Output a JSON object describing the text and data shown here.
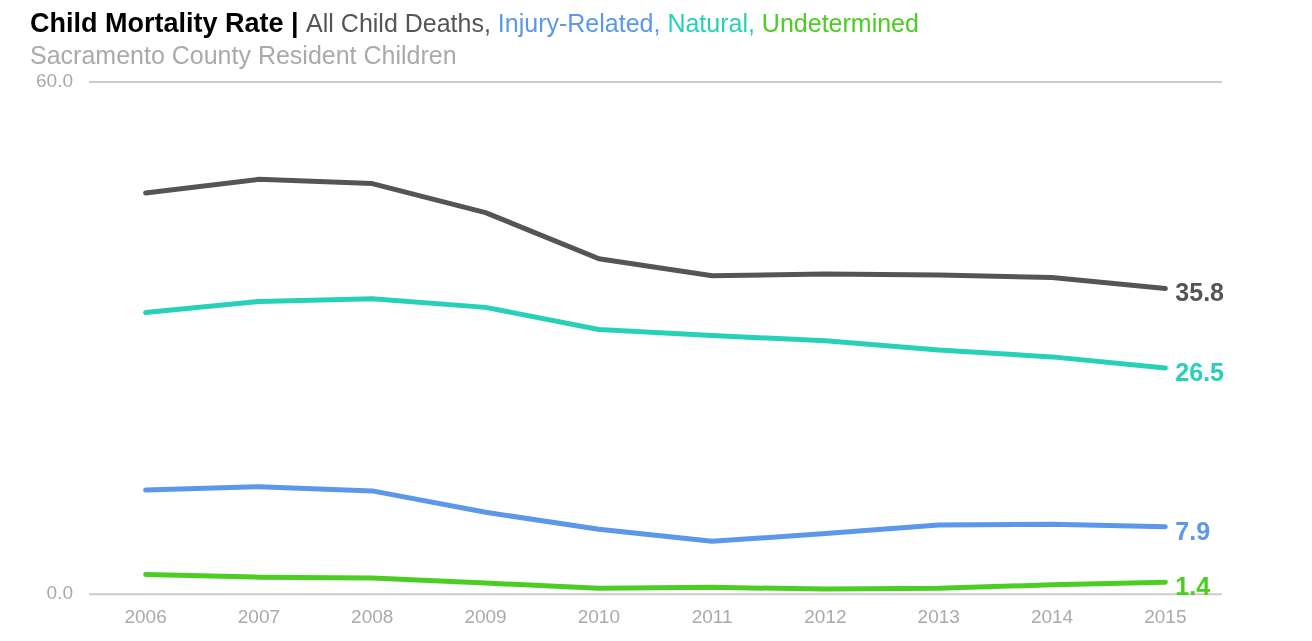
{
  "chart_data": {
    "type": "line",
    "title": "Child Mortality Rate |",
    "subtitle": "Sacramento County Resident Children",
    "categories": [
      "2006",
      "2007",
      "2008",
      "2009",
      "2010",
      "2011",
      "2012",
      "2013",
      "2014",
      "2015"
    ],
    "series": [
      {
        "name": "All Child Deaths,",
        "color": "#555555",
        "values": [
          47.0,
          48.6,
          48.1,
          44.7,
          39.3,
          37.3,
          37.5,
          37.4,
          37.1,
          35.8
        ],
        "value_labels": [
          null,
          null,
          null,
          null,
          null,
          null,
          null,
          null,
          null,
          "35.8"
        ]
      },
      {
        "name": "Injury-Related,",
        "color": "#5b97ea",
        "values": [
          12.2,
          12.6,
          12.1,
          9.6,
          7.6,
          6.2,
          7.1,
          8.1,
          8.2,
          7.9
        ],
        "value_labels": [
          null,
          null,
          null,
          null,
          null,
          null,
          null,
          null,
          null,
          "7.9"
        ]
      },
      {
        "name": "Natural,",
        "color": "#26d0b9",
        "values": [
          33.0,
          34.3,
          34.6,
          33.6,
          31.0,
          30.3,
          29.7,
          28.6,
          27.8,
          26.5
        ],
        "value_labels": [
          null,
          null,
          null,
          null,
          null,
          null,
          null,
          null,
          null,
          "26.5"
        ]
      },
      {
        "name": "Undetermined",
        "color": "#4ccd22",
        "values": [
          2.3,
          2.0,
          1.9,
          1.3,
          0.7,
          0.8,
          0.6,
          0.7,
          1.1,
          1.4
        ],
        "value_labels": [
          null,
          null,
          null,
          null,
          null,
          null,
          null,
          null,
          null,
          "1.4"
        ]
      }
    ],
    "ylim": [
      0,
      60
    ],
    "yticks": [
      {
        "value": 0,
        "label": "0.0"
      },
      {
        "value": 60,
        "label": "60.0"
      }
    ],
    "legend": "top",
    "marker": "none",
    "line_style": "solid"
  }
}
